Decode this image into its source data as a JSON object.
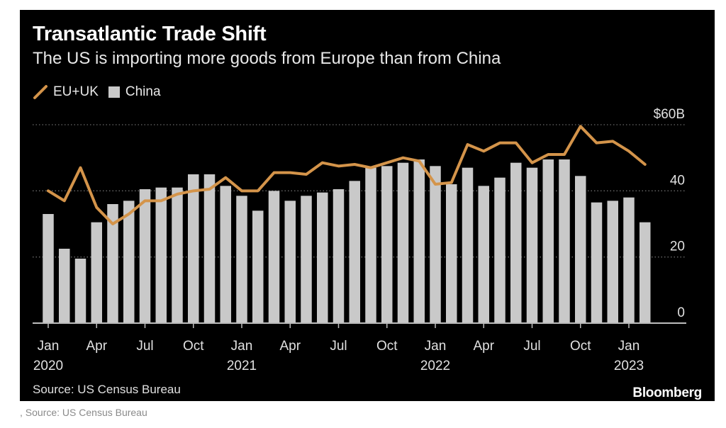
{
  "title": "Transatlantic Trade Shift",
  "subtitle": "The US is importing more goods from Europe than from China",
  "source": "Source: US Census Bureau",
  "brand": "Bloomberg",
  "caption": ", Source: US Census Bureau",
  "colors": {
    "background": "#000000",
    "eu_line": "#d4944a",
    "china_bar": "#c9c9c9",
    "gridline": "#6a6a6a",
    "axis": "#bdbdbd"
  },
  "chart_data": {
    "type": "bar",
    "x": [
      "2020-01",
      "2020-02",
      "2020-03",
      "2020-04",
      "2020-05",
      "2020-06",
      "2020-07",
      "2020-08",
      "2020-09",
      "2020-10",
      "2020-11",
      "2020-12",
      "2021-01",
      "2021-02",
      "2021-03",
      "2021-04",
      "2021-05",
      "2021-06",
      "2021-07",
      "2021-08",
      "2021-09",
      "2021-10",
      "2021-11",
      "2021-12",
      "2022-01",
      "2022-02",
      "2022-03",
      "2022-04",
      "2022-05",
      "2022-06",
      "2022-07",
      "2022-08",
      "2022-09",
      "2022-10",
      "2022-11",
      "2022-12",
      "2023-01",
      "2023-02"
    ],
    "series": [
      {
        "name": "China",
        "type": "bar",
        "values": [
          33,
          22.5,
          19.5,
          30.5,
          36,
          37,
          40.5,
          41,
          41,
          45,
          45,
          41.5,
          38.5,
          34,
          40,
          37,
          38.5,
          39.5,
          40.5,
          43,
          47,
          47.5,
          48.5,
          49.5,
          47.5,
          42,
          47,
          41.5,
          44,
          48.5,
          47,
          49.5,
          49.5,
          44.5,
          36.5,
          37,
          38,
          30.5
        ]
      },
      {
        "name": "EU+UK",
        "type": "line",
        "values": [
          40,
          37,
          47,
          35,
          30,
          33,
          37,
          37,
          39,
          40,
          40.5,
          44,
          40,
          40,
          45.5,
          45.5,
          45,
          48.5,
          47.5,
          48,
          47,
          48.5,
          50,
          49,
          42,
          42.5,
          54,
          52,
          54.5,
          54.5,
          48.5,
          51,
          51,
          59.5,
          54.5,
          55,
          52,
          48
        ]
      }
    ],
    "y_ticks": [
      {
        "value": 60,
        "label": "$60B"
      },
      {
        "value": 40,
        "label": "40"
      },
      {
        "value": 20,
        "label": "20"
      },
      {
        "value": 0,
        "label": "0"
      }
    ],
    "x_ticks": [
      {
        "index": 0,
        "month": "Jan",
        "year": "2020"
      },
      {
        "index": 3,
        "month": "Apr",
        "year": ""
      },
      {
        "index": 6,
        "month": "Jul",
        "year": ""
      },
      {
        "index": 9,
        "month": "Oct",
        "year": ""
      },
      {
        "index": 12,
        "month": "Jan",
        "year": "2021"
      },
      {
        "index": 15,
        "month": "Apr",
        "year": ""
      },
      {
        "index": 18,
        "month": "Jul",
        "year": ""
      },
      {
        "index": 21,
        "month": "Oct",
        "year": ""
      },
      {
        "index": 24,
        "month": "Jan",
        "year": "2022"
      },
      {
        "index": 27,
        "month": "Apr",
        "year": ""
      },
      {
        "index": 30,
        "month": "Jul",
        "year": ""
      },
      {
        "index": 33,
        "month": "Oct",
        "year": ""
      },
      {
        "index": 36,
        "month": "Jan",
        "year": "2023"
      }
    ],
    "ylim": [
      0,
      60
    ],
    "legend_placement": "top-left",
    "grid": "horizontal dotted"
  }
}
